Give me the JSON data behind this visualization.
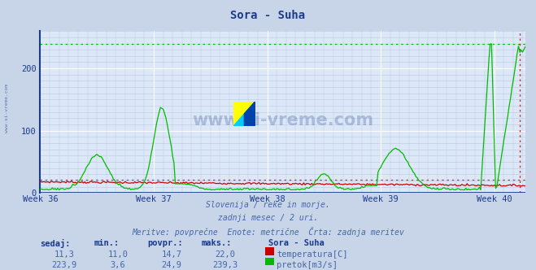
{
  "title": "Sora - Suha",
  "title_color": "#1a3a8a",
  "background_color": "#c8d4e8",
  "plot_background": "#dce8f8",
  "grid_color_white": "#ffffff",
  "grid_color_light": "#b8c8dc",
  "xlabel_weeks": [
    "Week 36",
    "Week 37",
    "Week 38",
    "Week 39",
    "Week 40"
  ],
  "yticks": [
    0,
    100,
    200
  ],
  "ylim": [
    0,
    260
  ],
  "n_points": 360,
  "temp_max": 22.0,
  "flow_max": 239.3,
  "subtitle_line1": "Slovenija / reke in morje.",
  "subtitle_line2": "zadnji mesec / 2 uri.",
  "subtitle_line3": "Meritve: povprečne  Enote: metrične  Črta: zadnja meritev",
  "subtitle_color": "#4466aa",
  "legend_title": "Sora - Suha",
  "legend_title_color": "#1a3a8a",
  "temp_color": "#cc0000",
  "flow_color": "#00bb00",
  "watermark_color": "#1a3a8a",
  "temp_dotted_color": "#dd3333",
  "flow_dotted_color": "#00bb00",
  "axis_color": "#1a3a8a",
  "bottom_line_color": "#1a3a8a",
  "right_dotted_color": "#cc2222",
  "left_axis_color": "#1a3a8a",
  "header_labels": [
    "sedaj:",
    "min.:",
    "povpr.:",
    "maks.:"
  ],
  "temp_vals": [
    "11,3",
    "11,0",
    "14,7",
    "22,0"
  ],
  "flow_vals": [
    "223,9",
    "3,6",
    "24,9",
    "239,3"
  ],
  "temp_label": "temperatura[C]",
  "flow_label": "pretok[m3/s]",
  "week_x_positions": [
    0,
    84,
    168,
    252,
    336
  ]
}
